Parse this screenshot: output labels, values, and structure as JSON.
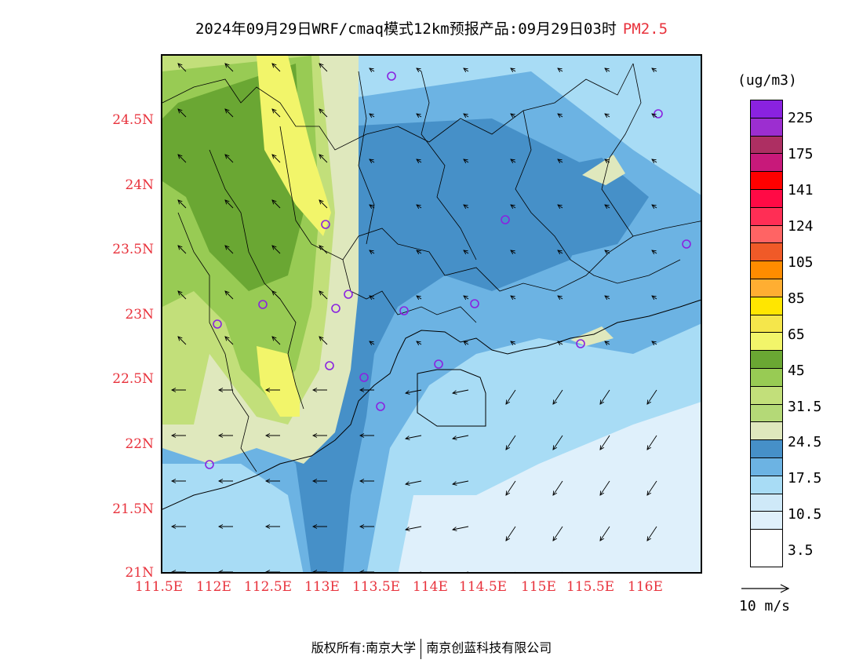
{
  "title": {
    "main": "2024年09月29日WRF/cmaq模式12km预报产品:09月29日03时",
    "pollutant": "PM2.5"
  },
  "map": {
    "lat_ticks": [
      "24.5N",
      "24N",
      "23.5N",
      "23N",
      "22.5N",
      "22N",
      "21.5N",
      "21N"
    ],
    "lon_ticks": [
      "111.5E",
      "112E",
      "112.5E",
      "113E",
      "113.5E",
      "114E",
      "114.5E",
      "115E",
      "115.5E",
      "116E"
    ],
    "colors": {
      "c0": "#ffffff",
      "c1": "#dff0fb",
      "c2": "#a8dcf5",
      "c3": "#6cb3e3",
      "c4": "#4690c8",
      "c5": "#dfe8bd",
      "c6": "#c2df7a",
      "c7": "#98cb54",
      "c8": "#6aa733",
      "c9": "#f2f56a",
      "coast": "#000000",
      "site": "#8a22e0"
    }
  },
  "legend": {
    "units": "(ug/m3)",
    "colors": [
      "#8a22e0",
      "#9c2ed0",
      "#ad2f62",
      "#c8197a",
      "#ff0000",
      "#ff0a45",
      "#ff2e55",
      "#ff6464",
      "#f05a28",
      "#ff8c00",
      "#ffae32",
      "#ffe600",
      "#f5e64b",
      "#f2f56a",
      "#6aa733",
      "#98cb54",
      "#c2df7a",
      "#b4d977",
      "#dfe8bd",
      "#4690c8",
      "#6cb3e3",
      "#a8dcf5",
      "#cfe9f8",
      "#dff0fb",
      "#ffffff"
    ],
    "labels": [
      "225",
      "175",
      "141",
      "124",
      "105",
      "85",
      "65",
      "45",
      "31.5",
      "24.5",
      "17.5",
      "10.5",
      "3.5"
    ],
    "wind_label": "10 m/s"
  },
  "footer": {
    "copyright": "版权所有:南京大学",
    "company": "南京创蓝科技有限公司"
  }
}
